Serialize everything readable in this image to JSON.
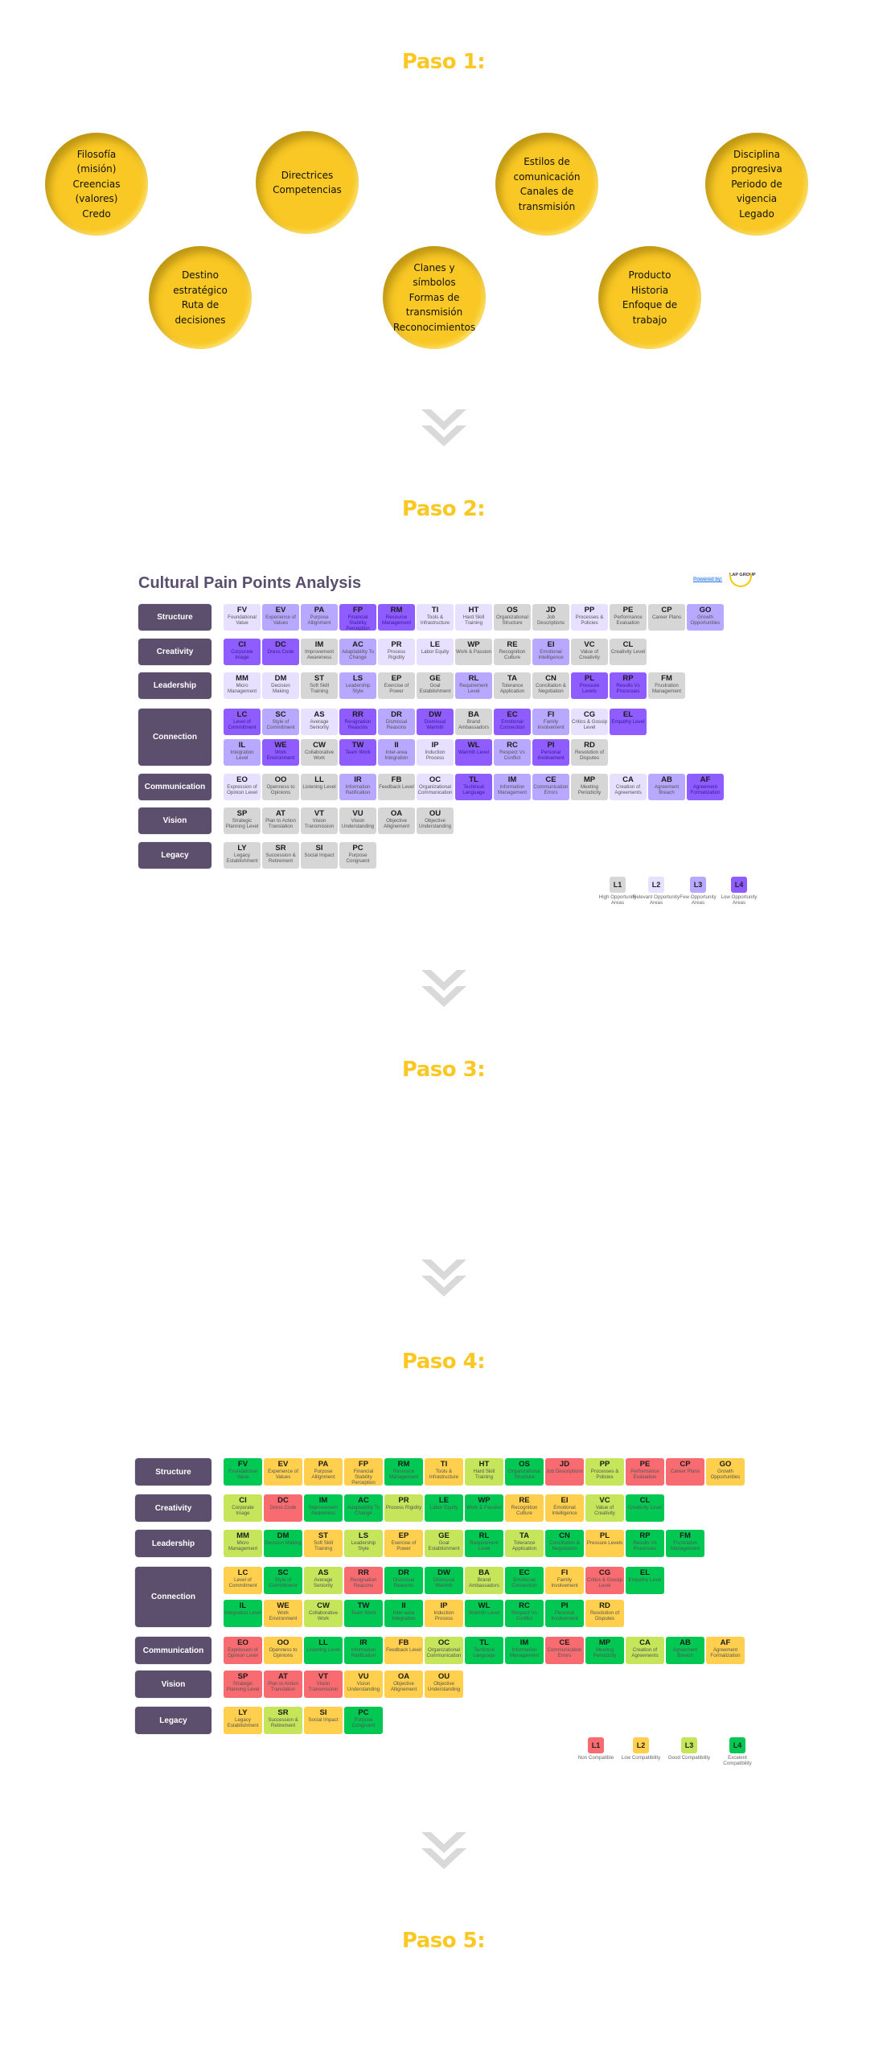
{
  "steps": [
    "Paso 1:",
    "Paso 2:",
    "Paso 3:",
    "Paso 4:",
    "Paso 5:"
  ],
  "circles": [
    [
      "Filosofía",
      "(misión)",
      "Creencias",
      "(valores)",
      "Credo"
    ],
    [
      "Directrices",
      "Competencias"
    ],
    [
      "Estilos de",
      "comunicación",
      "Canales de",
      "transmisión"
    ],
    [
      "Disciplina",
      "progresiva",
      "Periodo de",
      "vigencia",
      "Legado"
    ],
    [
      "Destino",
      "estratégico",
      "Ruta de",
      "decisiones"
    ],
    [
      "Clanes y",
      "símbolos",
      "Formas de",
      "transmisión",
      "Reconocimientos"
    ],
    [
      "Producto",
      "Historia",
      "Enfoque de",
      "trabajo"
    ]
  ],
  "icons": {
    "step_separator": "double-chevron-down-icon"
  },
  "dimensions": [
    {
      "name": "Structure",
      "rows": [
        [
          [
            "FV",
            "Foundational Value"
          ],
          [
            "EV",
            "Experience of Values"
          ],
          [
            "PA",
            "Purpose Allignment"
          ],
          [
            "FP",
            "Financial Stability Perception"
          ],
          [
            "RM",
            "Resource Management"
          ],
          [
            "TI",
            "Tools & Infrastructure"
          ],
          [
            "HT",
            "Hard Skill Training"
          ],
          [
            "OS",
            "Organizational Structure"
          ],
          [
            "JD",
            "Job Descriptions"
          ],
          [
            "PP",
            "Processes & Policies"
          ],
          [
            "PE",
            "Performance Evaluation"
          ],
          [
            "CP",
            "Career Plans"
          ],
          [
            "GO",
            "Growth Opportunities"
          ]
        ]
      ]
    },
    {
      "name": "Creativity",
      "rows": [
        [
          [
            "CI",
            "Corporate Image"
          ],
          [
            "DC",
            "Dress Code"
          ],
          [
            "IM",
            "Improvement Awareness"
          ],
          [
            "AC",
            "Adaptability To Change"
          ],
          [
            "PR",
            "Process Rigidity"
          ],
          [
            "LE",
            "Labor Equity"
          ],
          [
            "WP",
            "Work & Passion"
          ],
          [
            "RE",
            "Recognition Culture"
          ],
          [
            "EI",
            "Emotional Intelligence"
          ],
          [
            "VC",
            "Value of Creativity"
          ],
          [
            "CL",
            "Creativity Level"
          ]
        ]
      ]
    },
    {
      "name": "Leadership",
      "rows": [
        [
          [
            "MM",
            "Micro Management"
          ],
          [
            "DM",
            "Decision Making"
          ],
          [
            "ST",
            "Soft Skill Training"
          ],
          [
            "LS",
            "Leadership Style"
          ],
          [
            "EP",
            "Exercise of Power"
          ],
          [
            "GE",
            "Goal Establishment"
          ],
          [
            "RL",
            "Requirement Level"
          ],
          [
            "TA",
            "Tolerance Application"
          ],
          [
            "CN",
            "Conciliation & Negotiation"
          ],
          [
            "PL",
            "Pressure Levels"
          ],
          [
            "RP",
            "Results Vs Processes"
          ],
          [
            "FM",
            "Frustration Management"
          ]
        ]
      ]
    },
    {
      "name": "Connection",
      "rows": [
        [
          [
            "LC",
            "Level of Commitment"
          ],
          [
            "SC",
            "Style of Commitment"
          ],
          [
            "AS",
            "Average Seniority"
          ],
          [
            "RR",
            "Resignation Reasons"
          ],
          [
            "DR",
            "Dismissal Reasons"
          ],
          [
            "DW",
            "Dismissal Warmth"
          ],
          [
            "BA",
            "Brand Ambassadors"
          ],
          [
            "EC",
            "Emotional Connection"
          ],
          [
            "FI",
            "Family Involvement"
          ],
          [
            "CG",
            "Critics & Gossip Level"
          ],
          [
            "EL",
            "Empathy Level"
          ]
        ],
        [
          [
            "IL",
            "Integration Level"
          ],
          [
            "WE",
            "Work Environment"
          ],
          [
            "CW",
            "Collaborative Work"
          ],
          [
            "TW",
            "Team Work"
          ],
          [
            "II",
            "Inter-area Integration"
          ],
          [
            "IP",
            "Induction Process"
          ],
          [
            "WL",
            "Warmth Level"
          ],
          [
            "RC",
            "Respect Vs Conflict"
          ],
          [
            "PI",
            "Personal Involvement"
          ],
          [
            "RD",
            "Resolution of Disputes"
          ]
        ]
      ]
    },
    {
      "name": "Communication",
      "rows": [
        [
          [
            "EO",
            "Expression of Opinion Level"
          ],
          [
            "OO",
            "Openness to Opinions"
          ],
          [
            "LL",
            "Listening Level"
          ],
          [
            "IR",
            "Information Ratification"
          ],
          [
            "FB",
            "Feedback Level"
          ],
          [
            "OC",
            "Organizational Communication"
          ],
          [
            "TL",
            "Techincal Language"
          ],
          [
            "IM",
            "Information Management"
          ],
          [
            "CE",
            "Communication Errors"
          ],
          [
            "MP",
            "Meeting Periodicity"
          ],
          [
            "CA",
            "Creation of Agreements"
          ],
          [
            "AB",
            "Agreement Breach"
          ],
          [
            "AF",
            "Agreement Formalization"
          ]
        ]
      ]
    },
    {
      "name": "Vision",
      "rows": [
        [
          [
            "SP",
            "Strategic Planning Level"
          ],
          [
            "AT",
            "Plan to Action Translation"
          ],
          [
            "VT",
            "Vision Transmission"
          ],
          [
            "VU",
            "Vision Understanding"
          ],
          [
            "OA",
            "Objective Allignement"
          ],
          [
            "OU",
            "Objective Understanding"
          ]
        ]
      ]
    },
    {
      "name": "Legacy",
      "rows": [
        [
          [
            "LY",
            "Legacy Establishment"
          ],
          [
            "SR",
            "Succession & Retirement"
          ],
          [
            "SI",
            "Social Impact"
          ],
          [
            "PC",
            "Purpose Congruent"
          ]
        ]
      ]
    }
  ],
  "paso2": {
    "title": "Cultural Pain Points Analysis",
    "powered_by": "Powered by:",
    "logo_text": "LAP GROUP",
    "colors": {
      "1": "#d6d6d6",
      "2": "#e7e1ff",
      "3": "#b9a8ff",
      "4": "#8e5cff"
    },
    "legend": [
      {
        "code": "L1",
        "label": "High Opportunity Areas"
      },
      {
        "code": "L2",
        "label": "Relevant Opportunity Areas"
      },
      {
        "code": "L3",
        "label": "Few Opportunity Areas"
      },
      {
        "code": "L4",
        "label": "Low Opportunity Areas"
      }
    ],
    "levels": [
      [
        [
          2,
          3,
          3,
          4,
          4,
          2,
          2,
          1,
          1,
          2,
          1,
          1,
          3
        ]
      ],
      [
        [
          4,
          4,
          1,
          3,
          2,
          2,
          1,
          1,
          3,
          1,
          1
        ]
      ],
      [
        [
          2,
          2,
          1,
          3,
          1,
          1,
          3,
          1,
          1,
          4,
          4,
          1
        ]
      ],
      [
        [
          4,
          3,
          2,
          4,
          3,
          4,
          1,
          4,
          3,
          2,
          4
        ],
        [
          3,
          4,
          1,
          4,
          3,
          2,
          4,
          3,
          4,
          1
        ]
      ],
      [
        [
          2,
          1,
          1,
          3,
          1,
          2,
          4,
          3,
          3,
          1,
          2,
          3,
          4
        ]
      ],
      [
        [
          1,
          1,
          1,
          1,
          1,
          1
        ]
      ],
      [
        [
          1,
          1,
          1,
          1
        ]
      ]
    ]
  },
  "paso4": {
    "colors": {
      "1": "#f86b71",
      "2": "#ffcf4d",
      "3": "#c5e65b",
      "4": "#00c853"
    },
    "legend": [
      {
        "code": "L1",
        "label": "Non Compatible"
      },
      {
        "code": "L2",
        "label": "Low Compatibility"
      },
      {
        "code": "L3",
        "label": "Good Compatibility"
      },
      {
        "code": "L4",
        "label": "Excelent Compatibility"
      }
    ],
    "levels": [
      [
        [
          4,
          2,
          2,
          2,
          4,
          2,
          3,
          4,
          1,
          3,
          1,
          1,
          2
        ]
      ],
      [
        [
          3,
          1,
          4,
          4,
          3,
          4,
          4,
          2,
          2,
          3,
          4
        ]
      ],
      [
        [
          3,
          4,
          2,
          3,
          2,
          3,
          4,
          3,
          4,
          2,
          4,
          4
        ]
      ],
      [
        [
          2,
          4,
          3,
          1,
          4,
          4,
          3,
          4,
          2,
          1,
          4
        ],
        [
          4,
          2,
          3,
          4,
          4,
          2,
          4,
          4,
          4,
          2
        ]
      ],
      [
        [
          1,
          2,
          4,
          4,
          2,
          3,
          4,
          4,
          1,
          4,
          3,
          4,
          2
        ]
      ],
      [
        [
          1,
          1,
          1,
          2,
          2,
          2
        ]
      ],
      [
        [
          2,
          3,
          2,
          4
        ]
      ]
    ]
  }
}
